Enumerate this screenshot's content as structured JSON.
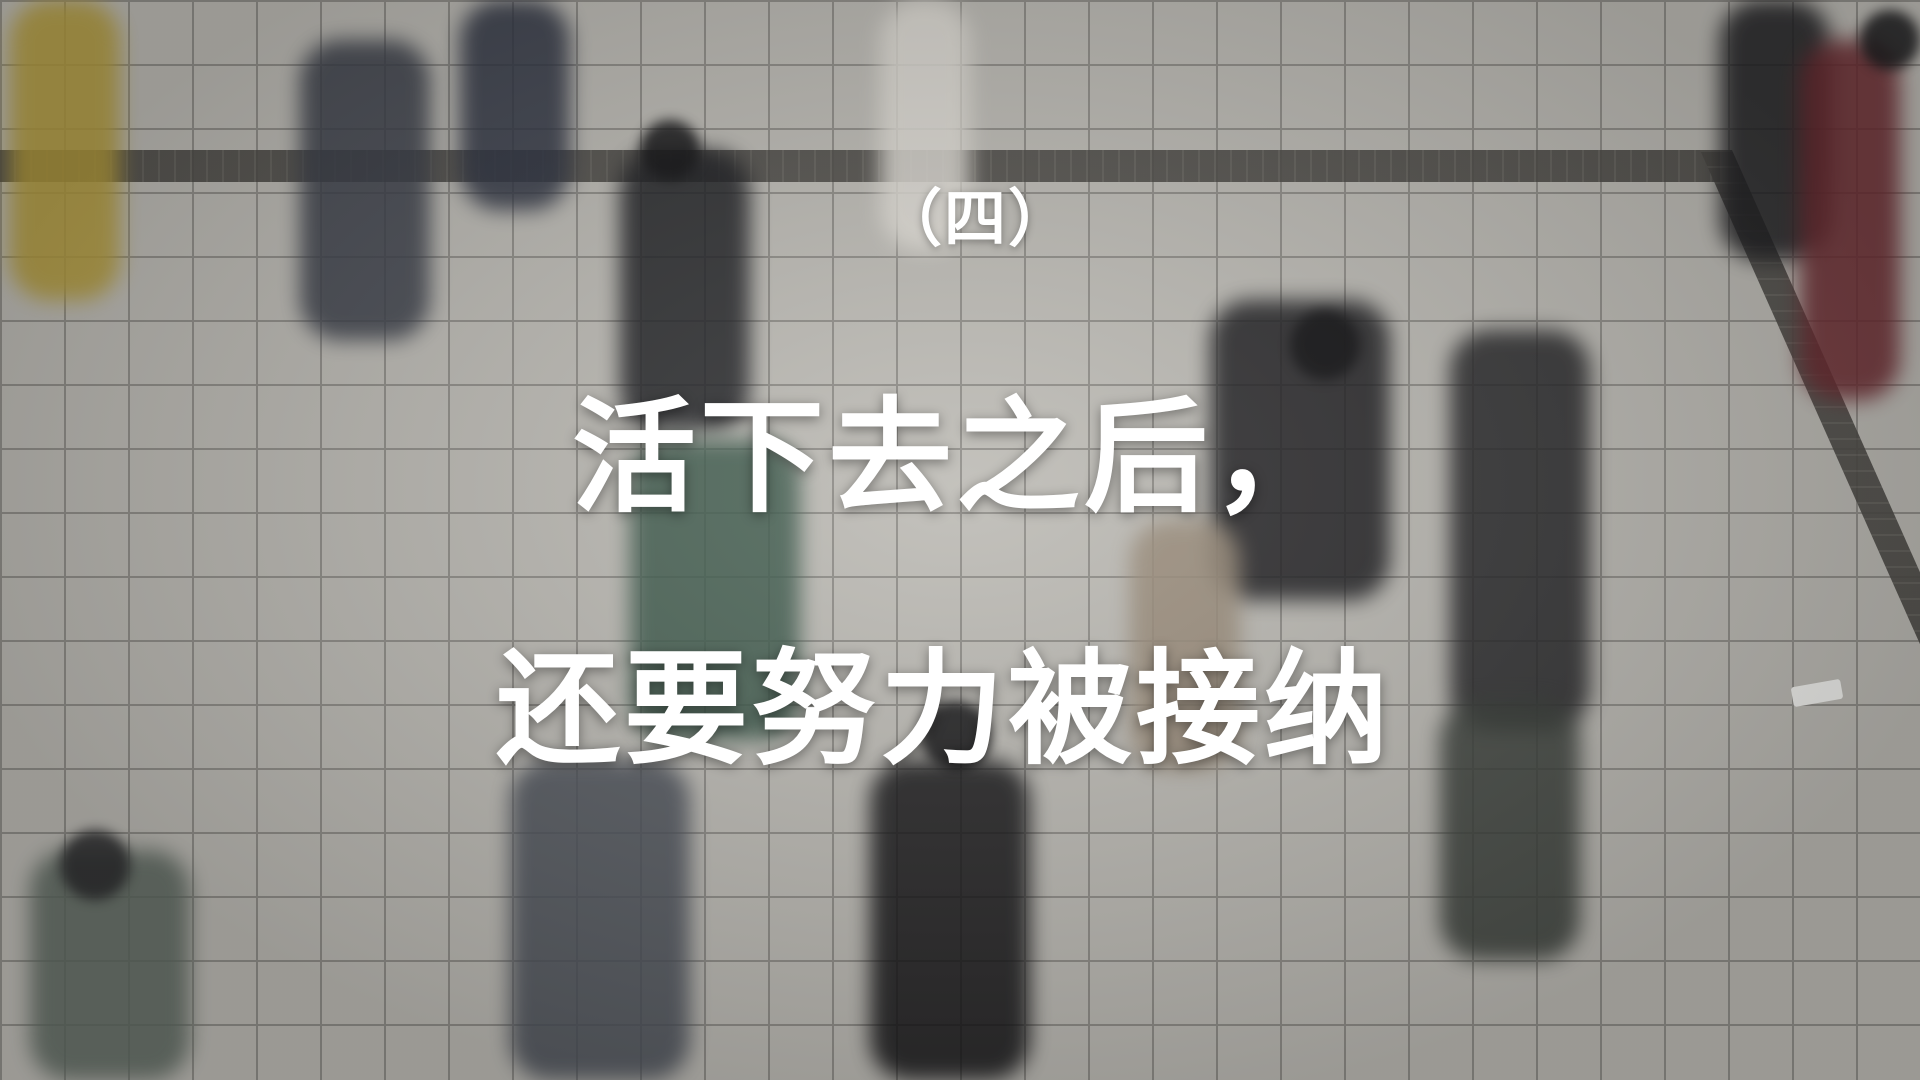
{
  "subtitle": "（四）",
  "title_line1": "活下去之后，",
  "title_line2": "还要努力被接纳",
  "colors": {
    "text": "#ffffff",
    "floor": "#bdbbb5",
    "grout": "#8f8d88",
    "strip": "#4c4a46"
  }
}
